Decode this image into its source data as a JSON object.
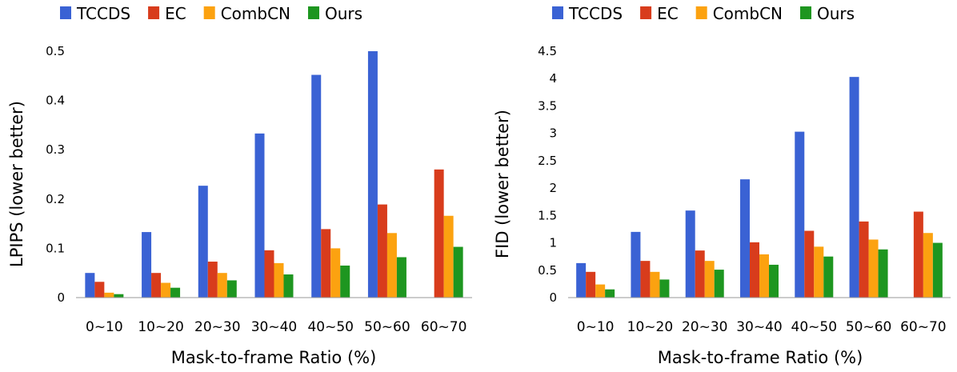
{
  "chart_data": [
    {
      "type": "bar",
      "title": "",
      "xlabel": "Mask-to-frame Ratio (%)",
      "ylabel": "LPIPS (lower better)",
      "ylim": [
        0,
        0.5
      ],
      "yticks": [
        "0",
        "0.1",
        "0.2",
        "0.3",
        "0.4",
        "0.5"
      ],
      "yticks_values": [
        0,
        0.1,
        0.2,
        0.3,
        0.4,
        0.5
      ],
      "grid": false,
      "legend_position": "top",
      "categories": [
        "0~10",
        "10~20",
        "20~30",
        "30~40",
        "40~50",
        "50~60",
        "60~70"
      ],
      "series": [
        {
          "name": "TCCDS",
          "color": "#3a62d4",
          "values": [
            0.05,
            0.133,
            0.227,
            0.333,
            0.452,
            0.5,
            null
          ]
        },
        {
          "name": "EC",
          "color": "#d83c1c",
          "values": [
            0.032,
            0.05,
            0.073,
            0.096,
            0.139,
            0.189,
            0.26
          ]
        },
        {
          "name": "CombCN",
          "color": "#fca210",
          "values": [
            0.01,
            0.03,
            0.05,
            0.07,
            0.1,
            0.131,
            0.166
          ]
        },
        {
          "name": "Ours",
          "color": "#1e9620",
          "values": [
            0.007,
            0.02,
            0.035,
            0.047,
            0.065,
            0.082,
            0.103
          ]
        }
      ]
    },
    {
      "type": "bar",
      "title": "",
      "xlabel": "Mask-to-frame Ratio (%)",
      "ylabel": "FID (lower better)",
      "ylim": [
        0,
        4.5
      ],
      "yticks": [
        "0",
        "0.5",
        "1",
        "1.5",
        "2",
        "2.5",
        "3",
        "3.5",
        "4",
        "4.5"
      ],
      "yticks_values": [
        0,
        0.5,
        1,
        1.5,
        2,
        2.5,
        3,
        3.5,
        4,
        4.5
      ],
      "grid": false,
      "legend_position": "top",
      "categories": [
        "0~10",
        "10~20",
        "20~30",
        "30~40",
        "40~50",
        "50~60",
        "60~70"
      ],
      "series": [
        {
          "name": "TCCDS",
          "color": "#3a62d4",
          "values": [
            0.63,
            1.2,
            1.59,
            2.16,
            3.03,
            4.03,
            null
          ]
        },
        {
          "name": "EC",
          "color": "#d83c1c",
          "values": [
            0.47,
            0.67,
            0.86,
            1.01,
            1.22,
            1.39,
            1.57
          ]
        },
        {
          "name": "CombCN",
          "color": "#fca210",
          "values": [
            0.24,
            0.47,
            0.67,
            0.79,
            0.93,
            1.06,
            1.18
          ]
        },
        {
          "name": "Ours",
          "color": "#1e9620",
          "values": [
            0.15,
            0.33,
            0.51,
            0.6,
            0.75,
            0.88,
            1.0
          ]
        }
      ]
    }
  ]
}
